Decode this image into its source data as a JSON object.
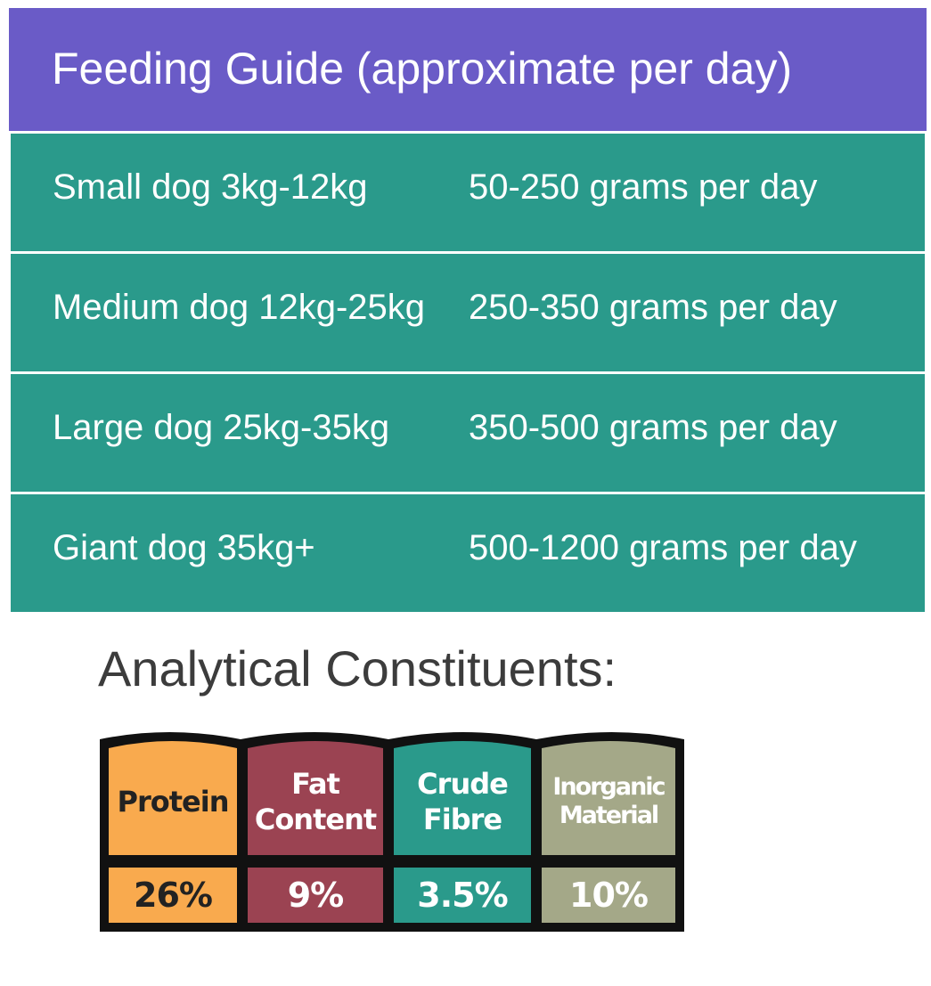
{
  "feeding_guide": {
    "title": "Feeding Guide (approximate per day)",
    "colors": {
      "header": "#6a5bc7",
      "rows": "#2a9a8b"
    },
    "rows": [
      {
        "size": "Small dog 3kg-12kg",
        "amount": "50-250 grams per day"
      },
      {
        "size": "Medium dog 12kg-25kg",
        "amount": "250-350 grams per day"
      },
      {
        "size": "Large dog 25kg-35kg",
        "amount": "350-500 grams per day"
      },
      {
        "size": "Giant dog 35kg+",
        "amount": "500-1200 grams per day"
      }
    ]
  },
  "analytical": {
    "title": "Analytical Constituents:",
    "items": [
      {
        "label_lines": [
          "Protein"
        ],
        "value": "26%",
        "color": "#f9aa4e"
      },
      {
        "label_lines": [
          "Fat",
          "Content"
        ],
        "value": "9%",
        "color": "#9b4352"
      },
      {
        "label_lines": [
          "Crude",
          "Fibre"
        ],
        "value": "3.5%",
        "color": "#2a9a8b"
      },
      {
        "label_lines": [
          "Inorganic",
          "Material"
        ],
        "value": "10%",
        "color": "#a4a888"
      }
    ]
  }
}
